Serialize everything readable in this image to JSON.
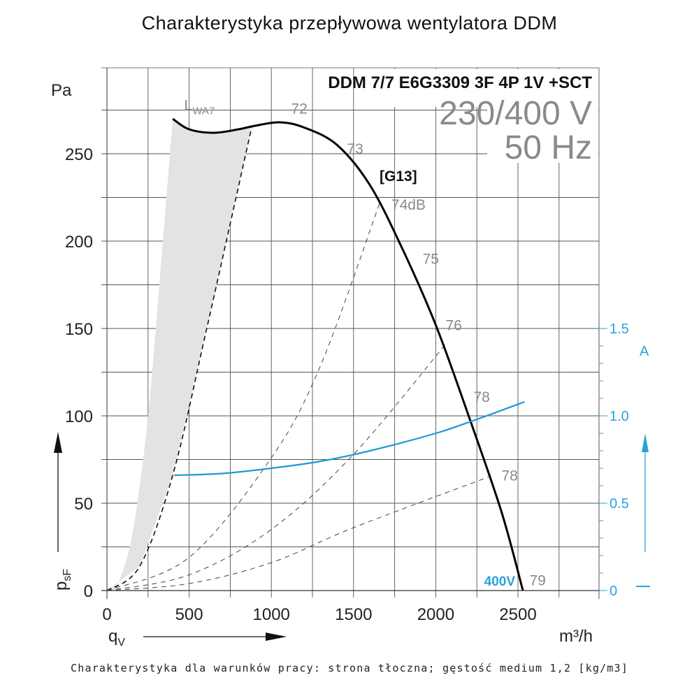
{
  "page": {
    "title": "Charakterystyka przepływowa wentylatora DDM",
    "footnote": "Charakterystyka dla warunków pracy: strona tłoczna; gęstość medium 1,2 [kg/m3]"
  },
  "chart_data": {
    "type": "line",
    "title": "Charakterystyka przepływowa wentylatora DDM",
    "model": "DDM 7/7 E6G3309 3F 4P 1V +SCT",
    "voltage": "230/400 V",
    "frequency": "50 Hz",
    "curve_tag": "[G13]",
    "voltage_tag": "400V",
    "xlabel": "q",
    "xlabel_sub": "V",
    "xunit": "m³/h",
    "ylabel": "p",
    "ylabel_sub": "sF",
    "yunit": "Pa",
    "y2unit": "A",
    "xlim": [
      0,
      3000
    ],
    "ylim": [
      0,
      300
    ],
    "y2lim": [
      0,
      3.0
    ],
    "x_ticks": [
      0,
      500,
      1000,
      1500,
      2000,
      2500
    ],
    "x_tick_labels": [
      "0",
      "500",
      "1000",
      "1500",
      "2000",
      "2500"
    ],
    "y_ticks": [
      0,
      50,
      100,
      150,
      200,
      250
    ],
    "y_tick_labels": [
      "0",
      "50",
      "100",
      "150",
      "200",
      "250"
    ],
    "y2_ticks": [
      0,
      0.5,
      1.0,
      1.5
    ],
    "y2_tick_labels": [
      "0",
      "0.5",
      "1.0",
      "1.5"
    ],
    "grid": true,
    "series": [
      {
        "name": "Pressure curve 400V",
        "axis": "left",
        "color": "#000000",
        "x": [
          400,
          500,
          650,
          800,
          900,
          1050,
          1200,
          1400,
          1600,
          1800,
          2000,
          2200,
          2400,
          2530
        ],
        "y": [
          270,
          264,
          262,
          264,
          266,
          268,
          265,
          255,
          232,
          195,
          152,
          100,
          45,
          0
        ]
      },
      {
        "name": "Current",
        "axis": "right",
        "color": "#1a9ad6",
        "x": [
          410,
          700,
          1000,
          1300,
          1600,
          2000,
          2250,
          2540
        ],
        "y": [
          0.66,
          0.67,
          0.7,
          0.74,
          0.8,
          0.9,
          0.98,
          1.08
        ]
      }
    ],
    "system_curves": [
      {
        "name": "System curve 1 (stall limit)",
        "x": [
          0,
          200,
          400,
          600,
          880
        ],
        "y": [
          0,
          14,
          66,
          147,
          265
        ],
        "emphasis": true
      },
      {
        "name": "System curve 2",
        "x": [
          0,
          500,
          1000,
          1300,
          1660
        ],
        "y": [
          0,
          19,
          76,
          129,
          222
        ]
      },
      {
        "name": "System curve 3",
        "x": [
          0,
          500,
          1000,
          1500,
          2060
        ],
        "y": [
          0,
          9,
          35,
          78,
          141
        ]
      },
      {
        "name": "System curve 4",
        "x": [
          0,
          500,
          1000,
          1500,
          2320
        ],
        "y": [
          0,
          4,
          16,
          36,
          65
        ]
      }
    ],
    "unstable_zone": {
      "name": "Unstable region (shaded)",
      "color": "#e3e3e3",
      "left_x": [
        50,
        150,
        250,
        340,
        400
      ],
      "left_y": [
        0,
        30,
        100,
        200,
        270
      ]
    },
    "sound_labels": [
      {
        "text": "L",
        "sub": "WA7",
        "x": 470,
        "y": 275
      },
      {
        "text": "72",
        "x": 1120,
        "y": 273
      },
      {
        "text": "73",
        "x": 1460,
        "y": 250
      },
      {
        "text": "74dB",
        "x": 1730,
        "y": 218
      },
      {
        "text": "75",
        "x": 1920,
        "y": 187
      },
      {
        "text": "76",
        "x": 2060,
        "y": 149
      },
      {
        "text": "78",
        "x": 2230,
        "y": 108
      },
      {
        "text": "78",
        "x": 2400,
        "y": 63
      },
      {
        "text": "79",
        "x": 2570,
        "y": 3
      }
    ]
  }
}
